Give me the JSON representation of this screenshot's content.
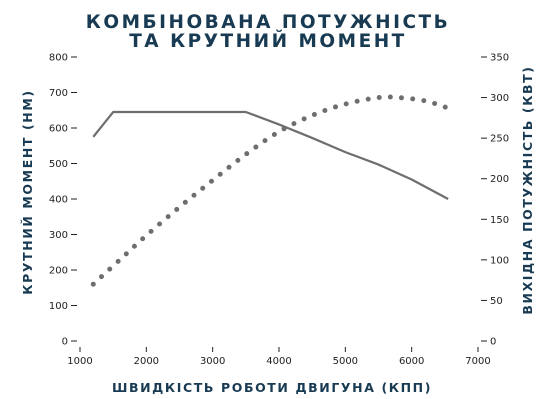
{
  "chart_data": {
    "type": "line",
    "title_lines": [
      "КОМБІНОВАНА ПОТУЖНІСТЬ",
      "ТА КРУТНИЙ МОМЕНТ"
    ],
    "xlabel": "ШВИДКІСТЬ РОБОТИ ДВИГУНА (КПП)",
    "ylabel_left": "КРУТНИЙ МОМЕНТ (НМ)",
    "ylabel_right": "ВИХІДНА ПОТУЖНІСТЬ (КВТ)",
    "xlim": [
      1000,
      7000
    ],
    "ylim_left": [
      0,
      800
    ],
    "ylim_right": [
      0,
      350
    ],
    "x_ticks": [
      1000,
      2000,
      3000,
      4000,
      5000,
      6000,
      7000
    ],
    "y_ticks_left": [
      0,
      100,
      200,
      300,
      400,
      500,
      600,
      700,
      800
    ],
    "y_ticks_right": [
      0,
      50,
      100,
      150,
      200,
      250,
      300,
      350
    ],
    "grid": false,
    "colors": {
      "torque": "#6e6e6e",
      "power": "#6e6e6e",
      "title": "#183a52"
    },
    "series": [
      {
        "axis": "left",
        "style": "solid",
        "points": [
          [
            1200,
            575
          ],
          [
            1500,
            645
          ],
          [
            2000,
            645
          ],
          [
            2500,
            645
          ],
          [
            3000,
            645
          ],
          [
            3500,
            645
          ],
          [
            4000,
            610
          ],
          [
            4500,
            572
          ],
          [
            5000,
            532
          ],
          [
            5500,
            497
          ],
          [
            6000,
            455
          ],
          [
            6550,
            400
          ]
        ]
      },
      {
        "axis": "right",
        "style": "dotted",
        "points": [
          [
            1200,
            70
          ],
          [
            1600,
            100
          ],
          [
            2000,
            130
          ],
          [
            2500,
            165
          ],
          [
            3000,
            198
          ],
          [
            3500,
            230
          ],
          [
            4000,
            258
          ],
          [
            4500,
            278
          ],
          [
            5000,
            292
          ],
          [
            5500,
            300
          ],
          [
            5800,
            300
          ],
          [
            6200,
            296
          ],
          [
            6550,
            287
          ]
        ]
      }
    ]
  }
}
